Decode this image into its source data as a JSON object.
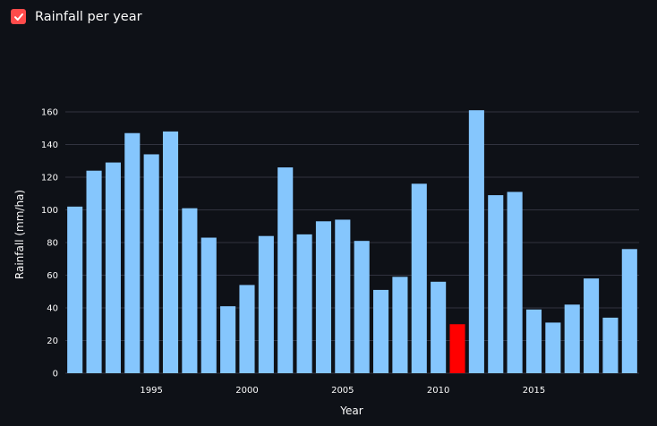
{
  "checkbox": {
    "label": "Rainfall per year",
    "checked": true,
    "color": "#ff4b4b"
  },
  "colors": {
    "background": "#0e1117",
    "bar": "#85c6fd",
    "highlight": "#ff0000",
    "grid": "#31333f",
    "text": "#fafafa"
  },
  "chart_data": {
    "type": "bar",
    "title": "",
    "xlabel": "Year",
    "ylabel": "Rainfall (mm/ha)",
    "ylim": [
      0,
      170
    ],
    "yticks": [
      0,
      20,
      40,
      60,
      80,
      100,
      120,
      140,
      160
    ],
    "xticks": [
      1995,
      2000,
      2005,
      2010,
      2015
    ],
    "grid": true,
    "highlight_category": 2011,
    "categories": [
      1991,
      1992,
      1993,
      1994,
      1995,
      1996,
      1997,
      1998,
      1999,
      2000,
      2001,
      2002,
      2003,
      2004,
      2005,
      2006,
      2007,
      2008,
      2009,
      2010,
      2011,
      2012,
      2013,
      2014,
      2015,
      2016,
      2017,
      2018,
      2019,
      2020
    ],
    "values": [
      102,
      124,
      129,
      147,
      134,
      148,
      101,
      83,
      41,
      54,
      84,
      126,
      85,
      93,
      94,
      81,
      51,
      59,
      116,
      56,
      30,
      161,
      109,
      111,
      39,
      31,
      42,
      58,
      34,
      76
    ]
  }
}
